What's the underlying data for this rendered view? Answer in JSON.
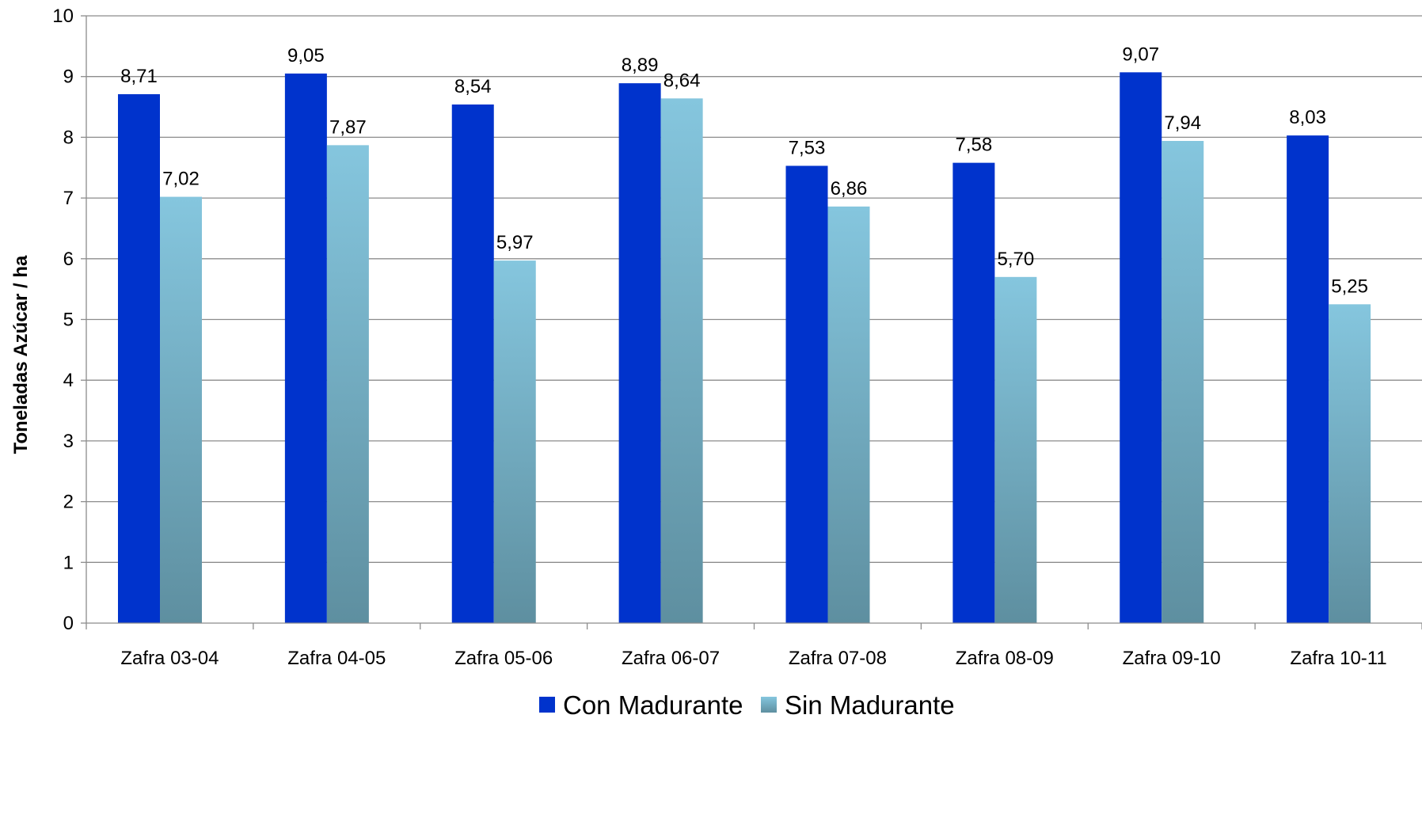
{
  "chart_data": {
    "type": "bar",
    "ylabel": "Toneladas Azúcar / ha",
    "xlabel": "",
    "ylim": [
      0,
      10
    ],
    "yticks": [
      0,
      1,
      2,
      3,
      4,
      5,
      6,
      7,
      8,
      9,
      10
    ],
    "grid": true,
    "legend_position": "bottom",
    "categories": [
      "Zafra 03-04",
      "Zafra 04-05",
      "Zafra 05-06",
      "Zafra 06-07",
      "Zafra 07-08",
      "Zafra 08-09",
      "Zafra 09-10",
      "Zafra 10-11"
    ],
    "series": [
      {
        "name": "Con Madurante",
        "values": [
          8.71,
          9.05,
          8.54,
          8.89,
          7.53,
          7.58,
          9.07,
          8.03
        ],
        "labels": [
          "8,71",
          "9,05",
          "8,54",
          "8,89",
          "7,53",
          "7,58",
          "9,07",
          "8,03"
        ],
        "color": "#0033CC"
      },
      {
        "name": "Sin Madurante",
        "values": [
          7.02,
          7.87,
          5.97,
          8.64,
          6.86,
          5.7,
          7.94,
          5.25
        ],
        "labels": [
          "7,02",
          "7,87",
          "5,97",
          "8,64",
          "6,86",
          "5,70",
          "7,94",
          "5,25"
        ],
        "color_top": "#85C6DE",
        "color_bottom": "#5E8FA0"
      }
    ]
  }
}
